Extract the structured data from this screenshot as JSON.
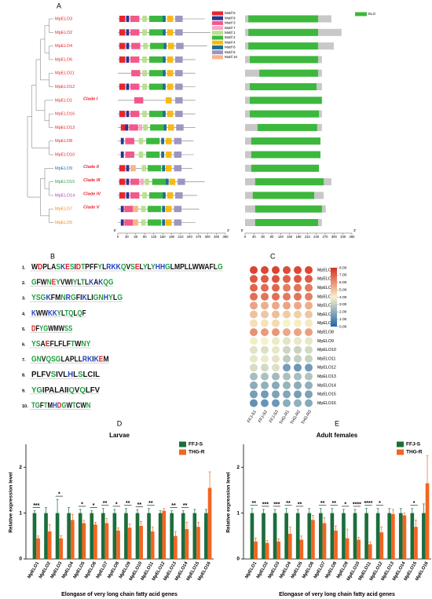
{
  "panel_a": {
    "label": "A",
    "xlim": [
      0,
      360
    ],
    "xticks": [
      0,
      30,
      60,
      90,
      120,
      150,
      180,
      210,
      240,
      270,
      300,
      330,
      360
    ],
    "end_labels": [
      "5'",
      "3'"
    ],
    "motifs": [
      {
        "name": "Motif 5",
        "color": "#e8262d",
        "width": 20
      },
      {
        "name": "Motif 9",
        "color": "#2e3192",
        "width": 10
      },
      {
        "name": "Motif 3",
        "color": "#f2588a",
        "width": 30
      },
      {
        "name": "Motif 7",
        "color": "#f7a8c4",
        "width": 12
      },
      {
        "name": "Motif 1",
        "color": "#b8e08f",
        "width": 15
      },
      {
        "name": "Motif 2",
        "color": "#3cb83c",
        "width": 45
      },
      {
        "name": "Motif 4",
        "color": "#f7b916",
        "width": 20
      },
      {
        "name": "Motif 8",
        "color": "#1f6f8b",
        "width": 10
      },
      {
        "name": "Motif 6",
        "color": "#9e95c0",
        "width": 25
      },
      {
        "name": "Motif 10",
        "color": "#f7b58a",
        "width": 18
      }
    ],
    "domain": {
      "name": "ELO",
      "color": "#3cb83c"
    },
    "genes": [
      {
        "name": "MpELO3",
        "color": "#e8262d",
        "clade": null,
        "length": 291,
        "motifs": [
          5,
          28,
          42,
          null,
          82,
          105,
          165,
          150,
          192,
          null
        ],
        "elo": [
          11,
          246
        ]
      },
      {
        "name": "MpELO2",
        "color": "#e8262d",
        "clade": null,
        "length": 325,
        "motifs": [
          5,
          28,
          42,
          null,
          82,
          105,
          165,
          150,
          192,
          null
        ],
        "elo": [
          11,
          246
        ]
      },
      {
        "name": "MpELO4",
        "color": "#e8262d",
        "clade": null,
        "length": 299,
        "motifs": [
          5,
          28,
          45,
          null,
          85,
          108,
          168,
          153,
          195,
          null
        ],
        "elo": [
          11,
          246
        ]
      },
      {
        "name": "MpELO6",
        "color": "#e8262d",
        "clade": null,
        "length": 259,
        "motifs": [
          5,
          28,
          42,
          null,
          82,
          105,
          165,
          150,
          192,
          null
        ],
        "elo": [
          16,
          246
        ]
      },
      {
        "name": "MpELO11",
        "color": "#e8262d",
        "clade": null,
        "length": 259,
        "motifs": [
          null,
          null,
          45,
          null,
          82,
          105,
          165,
          150,
          192,
          null
        ],
        "elo": [
          48,
          246
        ]
      },
      {
        "name": "MpELO12",
        "color": "#e8262d",
        "clade": null,
        "length": 259,
        "motifs": [
          5,
          28,
          42,
          null,
          82,
          105,
          165,
          150,
          192,
          null
        ],
        "elo": [
          16,
          241
        ]
      },
      {
        "name": "MpELO1",
        "color": "#e8262d",
        "clade": "Clade I",
        "length": 259,
        "motifs": [
          null,
          null,
          55,
          null,
          null,
          null,
          160,
          null,
          192,
          null
        ],
        "elo": [
          16,
          259
        ]
      },
      {
        "name": "MpELO16",
        "color": "#e8262d",
        "clade": null,
        "length": 259,
        "motifs": [
          5,
          28,
          42,
          null,
          82,
          105,
          165,
          150,
          192,
          null
        ],
        "elo": [
          16,
          249
        ]
      },
      {
        "name": "MpELO13",
        "color": "#e8262d",
        "clade": null,
        "length": 259,
        "motifs": [
          10,
          25,
          38,
          70,
          85,
          108,
          168,
          153,
          195,
          null
        ],
        "elo": [
          42,
          243
        ]
      },
      {
        "name": "MpELO8",
        "color": "#e8262d",
        "clade": null,
        "length": 254,
        "motifs": [
          null,
          10,
          25,
          null,
          70,
          95,
          160,
          145,
          188,
          null
        ],
        "elo": [
          21,
          254
        ]
      },
      {
        "name": "MpELO10",
        "color": "#e8262d",
        "clade": null,
        "length": 254,
        "motifs": [
          null,
          10,
          25,
          null,
          70,
          95,
          160,
          145,
          188,
          null
        ],
        "elo": [
          21,
          254
        ]
      },
      {
        "name": "MpELO9",
        "color": "#2b6cb0",
        "clade": "Clade II",
        "length": 249,
        "motifs": [
          5,
          28,
          null,
          null,
          80,
          100,
          160,
          148,
          188,
          42
        ],
        "elo": [
          21,
          249
        ]
      },
      {
        "name": "MpELO15",
        "color": "#2e9e4a",
        "clade": "Clade III",
        "length": 291,
        "motifs": [
          5,
          28,
          42,
          75,
          90,
          115,
          172,
          160,
          200,
          null
        ],
        "elo": [
          34,
          265
        ]
      },
      {
        "name": "MpELO14",
        "color": "#b03fb5",
        "clade": "Clade IV",
        "length": 265,
        "motifs": [
          5,
          28,
          42,
          null,
          82,
          105,
          165,
          150,
          192,
          null
        ],
        "elo": [
          26,
          233
        ]
      },
      {
        "name": "MpELO7",
        "color": "#f08c1e",
        "clade": "Clade V",
        "length": 272,
        "motifs": [
          null,
          10,
          22,
          null,
          78,
          100,
          160,
          148,
          188,
          50
        ],
        "elo": [
          34,
          259
        ]
      },
      {
        "name": "MpELO5",
        "color": "#f08c1e",
        "clade": null,
        "length": 259,
        "motifs": [
          null,
          10,
          22,
          null,
          78,
          100,
          160,
          148,
          188,
          50
        ],
        "elo": [
          34,
          246
        ]
      }
    ]
  },
  "panel_b": {
    "label": "B",
    "logos": [
      {
        "label": "1.",
        "sequence": "WDPLASKESIDTPFFYLRKKQVSELYLYHHGLMPLLWWAFLG"
      },
      {
        "label": "2.",
        "sequence": "GFWNEYVWIYLTLKAKQG"
      },
      {
        "label": "3.",
        "sequence": "YSGKFMNRGFIKLIGNHYLG"
      },
      {
        "label": "4.",
        "sequence": "KWWKKYLTQLQF"
      },
      {
        "label": "5.",
        "sequence": "DFYGWMWSS"
      },
      {
        "label": "6.",
        "sequence": "YSAEFLFLFTWNY"
      },
      {
        "label": "7.",
        "sequence": "GNVQSGLAPLLRKIKEM"
      },
      {
        "label": "8.",
        "sequence": "PLFVSIVLHLSLCIL"
      },
      {
        "label": "9.",
        "sequence": "YGIPALAIIQVQLFV"
      },
      {
        "label": "10.",
        "sequence": "TGFTMHDGWTCWN"
      }
    ]
  },
  "panel_c": {
    "label": "C",
    "columns": [
      "FFJ-S1",
      "FFJ-S2",
      "FFJ-S3",
      "THG-R1",
      "THG-R2",
      "THG-R3"
    ],
    "rows": [
      "MpELO1",
      "MpELO2",
      "MpELO3",
      "MpELO4",
      "MpELO5",
      "MpELO6",
      "MpELO7",
      "MpELO8",
      "MpELO9",
      "MpELO10",
      "MpELO11",
      "MpELO12",
      "MpELO13",
      "MpELO14",
      "MpELO15",
      "MpELO16"
    ],
    "values": [
      [
        7.6,
        7.5,
        7.6,
        7.4,
        7.5,
        7.5
      ],
      [
        7.2,
        7.1,
        7.3,
        7.0,
        7.2,
        7.1
      ],
      [
        6.9,
        6.8,
        6.9,
        6.4,
        6.6,
        6.5
      ],
      [
        6.7,
        6.6,
        6.7,
        6.5,
        6.6,
        6.4
      ],
      [
        5.6,
        5.4,
        5.5,
        5.6,
        5.5,
        5.4
      ],
      [
        5.0,
        4.9,
        5.1,
        4.8,
        4.7,
        4.9
      ],
      [
        4.4,
        4.3,
        4.5,
        4.0,
        4.1,
        4.2
      ],
      [
        6.0,
        5.8,
        5.9,
        5.5,
        5.6,
        5.7
      ],
      [
        3.9,
        4.0,
        3.8,
        3.6,
        3.7,
        3.7
      ],
      [
        3.6,
        3.5,
        3.7,
        3.2,
        3.1,
        3.3
      ],
      [
        3.7,
        3.8,
        3.6,
        2.9,
        3.0,
        3.1
      ],
      [
        3.4,
        3.3,
        3.5,
        1.6,
        1.4,
        1.5
      ],
      [
        2.5,
        2.6,
        2.4,
        2.6,
        2.5,
        2.7
      ],
      [
        2.0,
        2.1,
        1.9,
        2.2,
        2.0,
        2.1
      ],
      [
        1.6,
        1.5,
        1.7,
        1.8,
        1.6,
        1.7
      ],
      [
        1.2,
        1.3,
        1.4,
        2.0,
        2.1,
        1.9
      ]
    ],
    "colorbar_ticks": [
      {
        "value": 8,
        "label": "8.00"
      },
      {
        "value": 7,
        "label": "7.00"
      },
      {
        "value": 6,
        "label": "6.00"
      },
      {
        "value": 5,
        "label": "5.00"
      },
      {
        "value": 4,
        "label": "4.00"
      },
      {
        "value": 3,
        "label": "3.00"
      },
      {
        "value": 2,
        "label": "2.00"
      },
      {
        "value": 1,
        "label": "1.00"
      },
      {
        "value": 0,
        "label": "0.00"
      }
    ],
    "colors": [
      "#2166ac",
      "#f7f2c8",
      "#d7301f"
    ]
  },
  "chart_data": [
    {
      "type": "bar",
      "panel": "D",
      "title": "Larvae",
      "y_label": "Relative expression level",
      "x_label": "Elongase of very long chain fatty acid genes",
      "categories": [
        "MpELO1",
        "MpELO2",
        "MpELO3",
        "MpELO4",
        "MpELO5",
        "MpELO6",
        "MpELO7",
        "MpELO8",
        "MpELO9",
        "MpELO10",
        "MpELO11",
        "MpELO12",
        "MpELO13",
        "MpELO14",
        "MpELO15",
        "MpELO16"
      ],
      "series": [
        {
          "name": "FFJ-S",
          "color": "#1b6e3c",
          "values": [
            1,
            1,
            1,
            1,
            1,
            1,
            1,
            1,
            1,
            1,
            1,
            1,
            1,
            1,
            1,
            1
          ],
          "errors": [
            0.05,
            0.12,
            0.3,
            0.12,
            0.08,
            0.05,
            0.1,
            0.08,
            0.1,
            0.07,
            0.1,
            0.05,
            0.05,
            0.05,
            0.08,
            0.08
          ]
        },
        {
          "name": "THG-R",
          "color": "#f26522",
          "values": [
            0.45,
            0.6,
            0.45,
            0.85,
            0.78,
            0.75,
            0.78,
            0.62,
            0.68,
            0.72,
            0.6,
            1.05,
            0.5,
            0.65,
            0.7,
            1.55
          ],
          "errors": [
            0.05,
            0.15,
            0.06,
            0.12,
            0.06,
            0.05,
            0.1,
            0.06,
            0.08,
            0.1,
            0.1,
            0.05,
            0.1,
            0.15,
            0.1,
            0.35
          ]
        }
      ],
      "significance": [
        "***",
        null,
        "*",
        null,
        "*",
        "*",
        "**",
        "*",
        "**",
        "**",
        "**",
        null,
        "**",
        "**",
        null,
        null
      ],
      "ylim": [
        0,
        2.5
      ],
      "yticks": [
        0,
        1,
        2
      ],
      "legend": "upper right"
    },
    {
      "type": "bar",
      "panel": "E",
      "title": "Adult females",
      "y_label": "Relative expression level",
      "x_label": "Elongase of very long chain fatty acid genes",
      "categories": [
        "MpELO1",
        "MpELO2",
        "MpELO3",
        "MpELO4",
        "MpELO5",
        "MpELO6",
        "MpELO7",
        "MpELO8",
        "MpELO9",
        "MpELO10",
        "MpELO11",
        "MpELO12",
        "MpELO13",
        "MpELO14",
        "MpELO15",
        "MpELO16"
      ],
      "series": [
        {
          "name": "FFJ-S",
          "color": "#1b6e3c",
          "values": [
            1,
            1,
            1,
            1,
            1,
            1,
            1,
            1,
            1,
            1,
            1,
            1,
            1,
            1,
            1,
            1
          ],
          "errors": [
            0.1,
            0.08,
            0.08,
            0.1,
            0.08,
            0.1,
            0.1,
            0.1,
            0.08,
            0.08,
            0.1,
            0.1,
            0.1,
            0.1,
            0.1,
            0.2
          ]
        },
        {
          "name": "THG-R",
          "color": "#f26522",
          "values": [
            0.38,
            0.35,
            0.38,
            0.55,
            0.42,
            0.85,
            0.78,
            0.62,
            0.45,
            0.42,
            0.32,
            0.58,
            0.98,
            0.95,
            0.7,
            1.65
          ],
          "errors": [
            0.08,
            0.05,
            0.06,
            0.15,
            0.08,
            0.1,
            0.12,
            0.1,
            0.2,
            0.05,
            0.05,
            0.12,
            0.1,
            0.05,
            0.15,
            0.6
          ]
        }
      ],
      "significance": [
        "**",
        "***",
        "***",
        "**",
        "**",
        null,
        "**",
        "**",
        "*",
        "****",
        "****",
        "*",
        null,
        null,
        "*",
        null
      ],
      "ylim": [
        0,
        2.5
      ],
      "yticks": [
        0,
        1,
        2
      ],
      "legend": "upper right"
    }
  ]
}
